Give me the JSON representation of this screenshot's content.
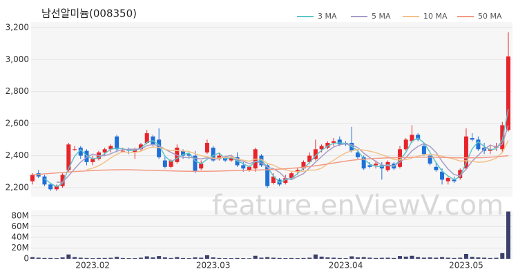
{
  "chart_data": {
    "type": "candlestick",
    "title": "남선알미늄(008350)",
    "watermark": "feature.enViewV.com",
    "categories": [
      null,
      null,
      null,
      null,
      null,
      null,
      null,
      null,
      null,
      null,
      "2023.02",
      null,
      null,
      null,
      null,
      null,
      null,
      null,
      null,
      null,
      null,
      null,
      null,
      null,
      null,
      null,
      null,
      null,
      null,
      null,
      "2023.03",
      null,
      null,
      null,
      null,
      null,
      null,
      null,
      null,
      null,
      null,
      null,
      null,
      null,
      null,
      null,
      null,
      null,
      null,
      null,
      null,
      null,
      "2023.04",
      null,
      null,
      null,
      null,
      null,
      null,
      null,
      null,
      null,
      null,
      null,
      null,
      null,
      null,
      null,
      null,
      null,
      null,
      null,
      "2023.05",
      null,
      null,
      null,
      null,
      null,
      null,
      null
    ],
    "open": [
      2240,
      2290,
      2270,
      2220,
      2190,
      2210,
      2310,
      2440,
      2450,
      2430,
      2360,
      2380,
      2420,
      2440,
      2520,
      2430,
      2440,
      2420,
      2440,
      2480,
      2520,
      2500,
      2370,
      2330,
      2360,
      2430,
      2410,
      2400,
      2320,
      2420,
      2450,
      2380,
      2390,
      2370,
      2390,
      2340,
      2310,
      2320,
      2400,
      2340,
      2230,
      2250,
      2230,
      2260,
      2300,
      2320,
      2360,
      2380,
      2440,
      2450,
      2480,
      2500,
      2480,
      2480,
      2420,
      2390,
      2340,
      2340,
      2340,
      2310,
      2350,
      2330,
      2440,
      2490,
      2530,
      2460,
      2400,
      2330,
      2300,
      2240,
      2250,
      2260,
      2320,
      2510,
      2500,
      2450,
      2430,
      2450,
      2440,
      2560
    ],
    "high": [
      2290,
      2310,
      2280,
      2230,
      2220,
      2290,
      2480,
      2460,
      2460,
      2440,
      2400,
      2430,
      2450,
      2470,
      2530,
      2450,
      2450,
      2450,
      2480,
      2560,
      2530,
      2570,
      2400,
      2380,
      2470,
      2440,
      2420,
      2430,
      2370,
      2500,
      2460,
      2420,
      2400,
      2400,
      2420,
      2360,
      2340,
      2450,
      2410,
      2350,
      2290,
      2260,
      2280,
      2300,
      2320,
      2370,
      2420,
      2500,
      2470,
      2490,
      2510,
      2520,
      2490,
      2580,
      2430,
      2400,
      2360,
      2370,
      2360,
      2370,
      2360,
      2460,
      2510,
      2590,
      2540,
      2480,
      2410,
      2360,
      2320,
      2270,
      2270,
      2320,
      2570,
      2540,
      2520,
      2480,
      2470,
      2480,
      2610,
      3170
    ],
    "low": [
      2220,
      2260,
      2210,
      2180,
      2180,
      2200,
      2300,
      2430,
      2380,
      2340,
      2340,
      2370,
      2400,
      2420,
      2420,
      2420,
      2410,
      2380,
      2430,
      2470,
      2450,
      2380,
      2320,
      2320,
      2350,
      2380,
      2380,
      2290,
      2310,
      2410,
      2360,
      2370,
      2360,
      2360,
      2330,
      2300,
      2300,
      2300,
      2330,
      2200,
      2220,
      2210,
      2220,
      2250,
      2280,
      2310,
      2350,
      2370,
      2420,
      2440,
      2460,
      2460,
      2460,
      2420,
      2380,
      2310,
      2320,
      2320,
      2250,
      2300,
      2310,
      2320,
      2430,
      2480,
      2490,
      2400,
      2340,
      2300,
      2220,
      2220,
      2230,
      2250,
      2310,
      2490,
      2430,
      2410,
      2410,
      2430,
      2420,
      2550
    ],
    "close": [
      2280,
      2270,
      2220,
      2190,
      2210,
      2280,
      2470,
      2440,
      2400,
      2360,
      2380,
      2420,
      2440,
      2460,
      2440,
      2430,
      2430,
      2440,
      2470,
      2540,
      2470,
      2390,
      2330,
      2370,
      2450,
      2400,
      2400,
      2300,
      2350,
      2480,
      2370,
      2400,
      2370,
      2390,
      2340,
      2320,
      2330,
      2440,
      2340,
      2210,
      2270,
      2220,
      2260,
      2290,
      2310,
      2360,
      2400,
      2440,
      2460,
      2480,
      2490,
      2470,
      2470,
      2430,
      2390,
      2320,
      2330,
      2350,
      2320,
      2360,
      2320,
      2440,
      2500,
      2530,
      2500,
      2410,
      2350,
      2310,
      2250,
      2260,
      2240,
      2310,
      2520,
      2500,
      2440,
      2430,
      2440,
      2460,
      2590,
      3020
    ],
    "up_color": "#e8242b",
    "down_color": "#1f6fd8",
    "series": [
      {
        "name": "3 MA",
        "color": "#5cc5c9",
        "values": [
          null,
          null,
          2257,
          2227,
          2207,
          2227,
          2320,
          2397,
          2437,
          2400,
          2380,
          2387,
          2413,
          2440,
          2447,
          2443,
          2433,
          2433,
          2447,
          2483,
          2493,
          2467,
          2397,
          2363,
          2383,
          2407,
          2417,
          2367,
          2350,
          2377,
          2400,
          2417,
          2380,
          2387,
          2367,
          2350,
          2330,
          2363,
          2370,
          2330,
          2273,
          2233,
          2250,
          2257,
          2287,
          2320,
          2357,
          2400,
          2433,
          2460,
          2477,
          2480,
          2477,
          2457,
          2430,
          2380,
          2347,
          2333,
          2333,
          2343,
          2333,
          2373,
          2420,
          2490,
          2510,
          2480,
          2420,
          2357,
          2303,
          2273,
          2250,
          2270,
          2357,
          2443,
          2487,
          2457,
          2437,
          2443,
          2497,
          2690
        ]
      },
      {
        "name": "5 MA",
        "color": "#a79bc6",
        "values": [
          null,
          null,
          null,
          null,
          2234,
          2234,
          2274,
          2318,
          2360,
          2390,
          2410,
          2400,
          2400,
          2412,
          2428,
          2438,
          2440,
          2440,
          2442,
          2462,
          2470,
          2462,
          2440,
          2420,
          2402,
          2388,
          2390,
          2384,
          2380,
          2386,
          2380,
          2380,
          2394,
          2402,
          2374,
          2364,
          2350,
          2364,
          2354,
          2328,
          2318,
          2296,
          2260,
          2250,
          2270,
          2288,
          2324,
          2360,
          2394,
          2428,
          2454,
          2468,
          2474,
          2468,
          2450,
          2416,
          2388,
          2364,
          2342,
          2336,
          2336,
          2358,
          2388,
          2430,
          2458,
          2476,
          2458,
          2420,
          2364,
          2316,
          2282,
          2274,
          2316,
          2366,
          2402,
          2440,
          2466,
          2454,
          2472,
          2588
        ]
      },
      {
        "name": "10 MA",
        "color": "#f3c188",
        "values": [
          null,
          null,
          null,
          null,
          null,
          null,
          null,
          null,
          null,
          2312,
          2322,
          2337,
          2359,
          2386,
          2409,
          2424,
          2420,
          2420,
          2427,
          2445,
          2454,
          2451,
          2440,
          2431,
          2432,
          2429,
          2426,
          2412,
          2400,
          2394,
          2384,
          2385,
          2389,
          2391,
          2380,
          2372,
          2365,
          2379,
          2378,
          2351,
          2341,
          2323,
          2312,
          2302,
          2299,
          2303,
          2310,
          2310,
          2322,
          2349,
          2371,
          2396,
          2417,
          2431,
          2439,
          2435,
          2428,
          2419,
          2405,
          2393,
          2376,
          2373,
          2376,
          2386,
          2397,
          2406,
          2408,
          2404,
          2397,
          2387,
          2379,
          2366,
          2368,
          2365,
          2359,
          2361,
          2370,
          2385,
          2419,
          2495
        ]
      },
      {
        "name": "50 MA",
        "color": "#f29a83",
        "values": [
          2280,
          2283,
          2286,
          2289,
          2292,
          2295,
          2298,
          2301,
          2303,
          2305,
          2307,
          2309,
          2310,
          2311,
          2312,
          2312,
          2312,
          2311,
          2310,
          2309,
          2308,
          2307,
          2306,
          2305,
          2304,
          2303,
          2302,
          2302,
          2302,
          2302,
          2303,
          2304,
          2305,
          2306,
          2307,
          2308,
          2309,
          2310,
          2311,
          2312,
          2314,
          2316,
          2318,
          2321,
          2324,
          2328,
          2332,
          2337,
          2342,
          2348,
          2354,
          2360,
          2366,
          2371,
          2375,
          2378,
          2381,
          2383,
          2385,
          2386,
          2387,
          2388,
          2389,
          2390,
          2391,
          2391,
          2391,
          2390,
          2389,
          2388,
          2387,
          2386,
          2386,
          2386,
          2387,
          2388,
          2390,
          2393,
          2396,
          2400
        ]
      }
    ],
    "ylim": [
      2144,
      3234
    ],
    "yticks": [
      {
        "value": 2200,
        "label": "2,200"
      },
      {
        "value": 2400,
        "label": "2,400"
      },
      {
        "value": 2600,
        "label": "2,600"
      },
      {
        "value": 2800,
        "label": "2,800"
      },
      {
        "value": 3000,
        "label": "3,000"
      },
      {
        "value": 3200,
        "label": "3,200"
      }
    ],
    "grid": true,
    "volume": {
      "color": "#3b3f6b",
      "values": [
        3000000,
        2000000,
        1500000,
        1500000,
        1200000,
        2500000,
        8000000,
        3000000,
        2000000,
        1500000,
        1200000,
        1500000,
        1500000,
        1800000,
        3500000,
        1500000,
        1200000,
        1200000,
        2000000,
        4500000,
        2500000,
        5000000,
        2500000,
        1500000,
        3000000,
        1500000,
        1200000,
        2500000,
        2000000,
        6500000,
        2500000,
        1500000,
        1200000,
        1200000,
        1500000,
        1200000,
        1000000,
        5500000,
        2000000,
        3000000,
        2000000,
        1500000,
        1200000,
        1500000,
        1200000,
        1500000,
        2000000,
        8000000,
        4000000,
        2500000,
        2000000,
        1500000,
        1200000,
        4500000,
        2500000,
        3000000,
        2000000,
        1500000,
        1800000,
        2000000,
        1500000,
        5000000,
        4000000,
        5500000,
        3000000,
        2000000,
        2500000,
        2000000,
        3000000,
        2000000,
        1500000,
        2000000,
        9000000,
        3500000,
        2500000,
        2000000,
        1500000,
        1800000,
        10500000,
        88000000
      ],
      "ylim": [
        0,
        90000000
      ],
      "yticks": [
        0,
        {
          "value": 20000000,
          "label": "20M"
        },
        {
          "value": 40000000,
          "label": "40M"
        },
        {
          "value": 60000000,
          "label": "60M"
        },
        {
          "value": 80000000,
          "label": "80M"
        }
      ]
    }
  }
}
